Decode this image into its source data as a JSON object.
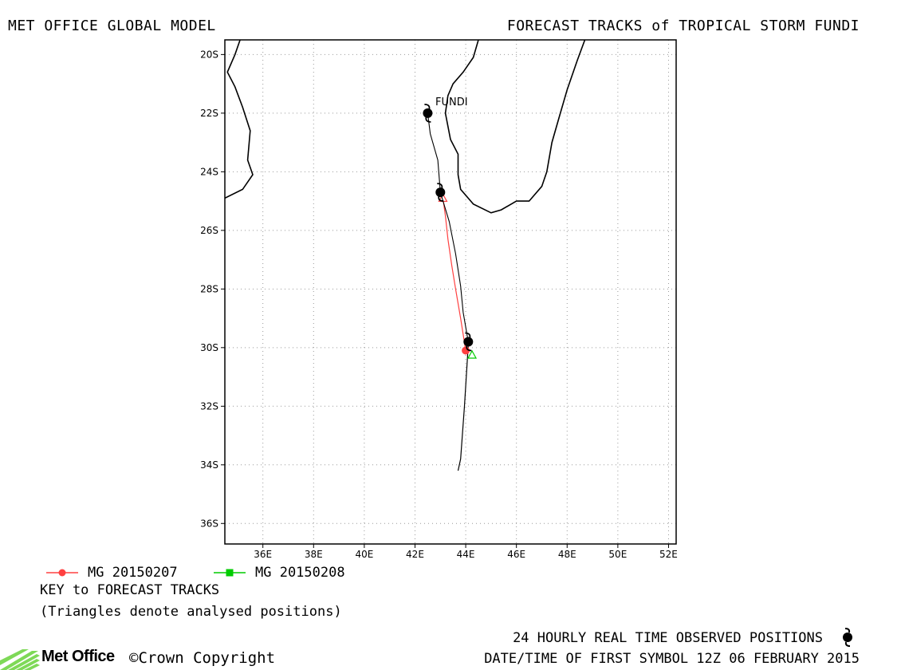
{
  "header": {
    "title_left": "MET OFFICE GLOBAL MODEL",
    "title_right": "FORECAST TRACKS of TROPICAL STORM FUNDI"
  },
  "map": {
    "lon_range": [
      34.5,
      52.3
    ],
    "lat_range": [
      -36.7,
      -19.5
    ],
    "lon_ticks": [
      36,
      38,
      40,
      42,
      44,
      46,
      48,
      50,
      52
    ],
    "lat_ticks": [
      -20,
      -22,
      -24,
      -26,
      -28,
      -30,
      -32,
      -34,
      -36
    ],
    "lon_tick_labels": [
      "36E",
      "38E",
      "40E",
      "42E",
      "44E",
      "46E",
      "48E",
      "50E",
      "52E"
    ],
    "lat_tick_labels": [
      "20S",
      "22S",
      "24S",
      "26S",
      "28S",
      "30S",
      "32S",
      "34S",
      "36S"
    ],
    "grid": "dotted",
    "storm_label": "FUNDI",
    "coastline_africa": [
      [
        34.5,
        -24.9
      ],
      [
        35.2,
        -24.6
      ],
      [
        35.6,
        -24.1
      ],
      [
        35.4,
        -23.6
      ],
      [
        35.5,
        -22.6
      ],
      [
        35.2,
        -21.8
      ],
      [
        34.9,
        -21.1
      ],
      [
        34.6,
        -20.6
      ],
      [
        34.9,
        -20.0
      ],
      [
        35.1,
        -19.5
      ]
    ],
    "coastline_madagascar": [
      [
        44.5,
        -19.5
      ],
      [
        44.3,
        -20.1
      ],
      [
        43.9,
        -20.6
      ],
      [
        43.5,
        -21.0
      ],
      [
        43.3,
        -21.4
      ],
      [
        43.2,
        -22.0
      ],
      [
        43.4,
        -22.9
      ],
      [
        43.7,
        -23.4
      ],
      [
        43.7,
        -24.1
      ],
      [
        43.8,
        -24.6
      ],
      [
        44.3,
        -25.1
      ],
      [
        45.0,
        -25.4
      ],
      [
        45.4,
        -25.3
      ],
      [
        46.0,
        -25.0
      ],
      [
        46.5,
        -25.0
      ],
      [
        47.0,
        -24.5
      ],
      [
        47.2,
        -24.0
      ],
      [
        47.4,
        -23.0
      ],
      [
        47.7,
        -22.1
      ],
      [
        48.0,
        -21.2
      ],
      [
        48.4,
        -20.2
      ],
      [
        48.7,
        -19.5
      ]
    ],
    "observed_track": [
      [
        42.5,
        -22.0
      ],
      [
        42.6,
        -22.7
      ],
      [
        42.9,
        -23.6
      ],
      [
        43.0,
        -24.7
      ],
      [
        43.35,
        -25.7
      ],
      [
        43.6,
        -26.8
      ],
      [
        43.8,
        -27.9
      ],
      [
        43.9,
        -28.8
      ],
      [
        44.1,
        -29.8
      ]
    ],
    "observed_positions": [
      [
        42.5,
        -22.0
      ],
      [
        43.0,
        -24.7
      ],
      [
        44.1,
        -29.8
      ]
    ],
    "forecast_tracks": [
      {
        "name": "MG 20150207",
        "color": "#ff4040",
        "points": [
          [
            44.0,
            -30.1
          ],
          [
            43.8,
            -29.0
          ],
          [
            43.6,
            -28.0
          ],
          [
            43.45,
            -27.2
          ],
          [
            43.3,
            -26.3
          ],
          [
            43.2,
            -25.5
          ],
          [
            43.1,
            -24.9
          ]
        ],
        "analysed_position": [
          43.1,
          -24.9
        ]
      },
      {
        "name": "MG 20150208",
        "color": "#00cc00",
        "points": [
          [
            44.1,
            -29.9
          ],
          [
            43.95,
            -32.0
          ],
          [
            43.8,
            -33.8
          ],
          [
            43.7,
            -34.2
          ]
        ],
        "analysed_position": [
          44.25,
          -30.25
        ]
      }
    ]
  },
  "legend": {
    "track1_label": "MG 20150207",
    "track2_label": "MG 20150208",
    "key_title": "KEY to FORECAST TRACKS",
    "key_note": "(Triangles denote analysed positions)"
  },
  "footer": {
    "observed_note": "24 HOURLY REAL TIME OBSERVED POSITIONS",
    "first_symbol": "DATE/TIME OF FIRST SYMBOL 12Z 06 FEBRUARY 2015",
    "logo_text": "Met Office",
    "copyright": "Crown Copyright"
  },
  "icons": {
    "cyclone_symbol": "cyclone-icon",
    "logo_mark": "met-office-stripes-icon"
  }
}
